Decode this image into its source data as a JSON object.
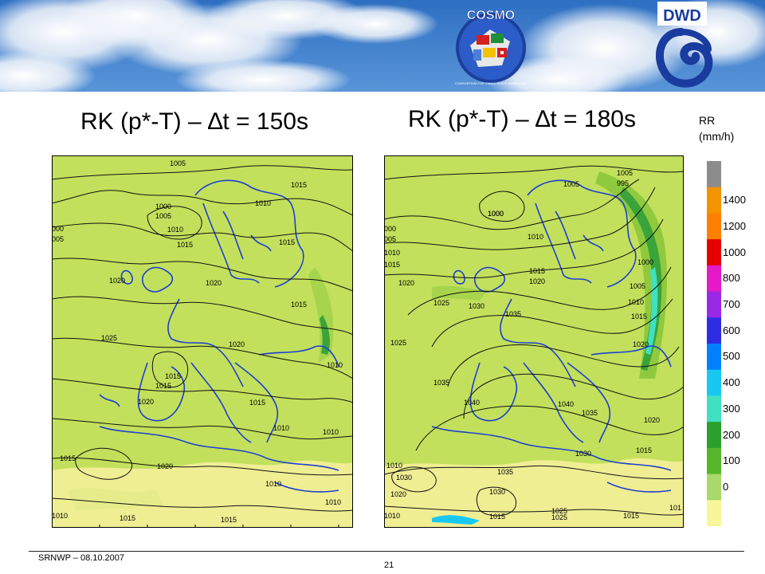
{
  "header": {
    "cosmo_logo_text": "COSMO",
    "cosmo_logo_subtext": "CONSORTIUM FOR SMALL SCALE MODELLING",
    "dwd_logo_text": "DWD",
    "sky_color": "#3d7dc9"
  },
  "panels": [
    {
      "title": "RK (p*-T) – ∆t = 150s",
      "isobar_labels": [
        "1005",
        "1000",
        "1005",
        "1010",
        "1010",
        "000",
        "005",
        "1015",
        "1015",
        "1015",
        "1020",
        "1020",
        "1015",
        "1025",
        "1020",
        "1015",
        "1015",
        "1020",
        "1015",
        "1010",
        "1010",
        "1010",
        "1015",
        "1020",
        "1010",
        "1010",
        "1015",
        "1015",
        "1010"
      ]
    },
    {
      "title": "RK (p*-T) – ∆t = 180s",
      "isobar_labels": [
        "1005",
        "1000",
        "995",
        "1000",
        "1005",
        "1010",
        "000",
        "005",
        "1010",
        "1015",
        "1015",
        "1020",
        "1020",
        "1025",
        "1030",
        "1035",
        "1000",
        "1005",
        "1010",
        "1015",
        "1025",
        "1020",
        "1035",
        "1040",
        "1040",
        "1035",
        "1020",
        "1030",
        "1015",
        "1010",
        "1030",
        "1035",
        "1030",
        "1020",
        "1025",
        "1025",
        "1015",
        "1015",
        "1010",
        "101"
      ]
    }
  ],
  "legend": {
    "title_line1": "RR",
    "title_line2": "(mm/h)",
    "levels": [
      {
        "label": "",
        "color": "#8c8c8c"
      },
      {
        "label": "1400",
        "color": "#f29400"
      },
      {
        "label": "1200",
        "color": "#ff8000"
      },
      {
        "label": "1000",
        "color": "#e60000"
      },
      {
        "label": "800",
        "color": "#e619c8"
      },
      {
        "label": "700",
        "color": "#9929e6"
      },
      {
        "label": "600",
        "color": "#2d2de6"
      },
      {
        "label": "500",
        "color": "#0080ff"
      },
      {
        "label": "400",
        "color": "#19c8f0"
      },
      {
        "label": "300",
        "color": "#40e0c0"
      },
      {
        "label": "200",
        "color": "#2ca02c"
      },
      {
        "label": "100",
        "color": "#55b62a"
      },
      {
        "label": "0",
        "color": "#a8d96a"
      },
      {
        "label": "",
        "color": "#f7f79a"
      }
    ]
  },
  "colors": {
    "land_green": "#c2e05c",
    "sea_green": "#b9db55",
    "desert_yellow": "#f0ee93",
    "isobar": "#111111",
    "coast": "#1f3fcf"
  },
  "footer": {
    "left": "SRNWP   – 08.10.2007",
    "page": "21"
  }
}
